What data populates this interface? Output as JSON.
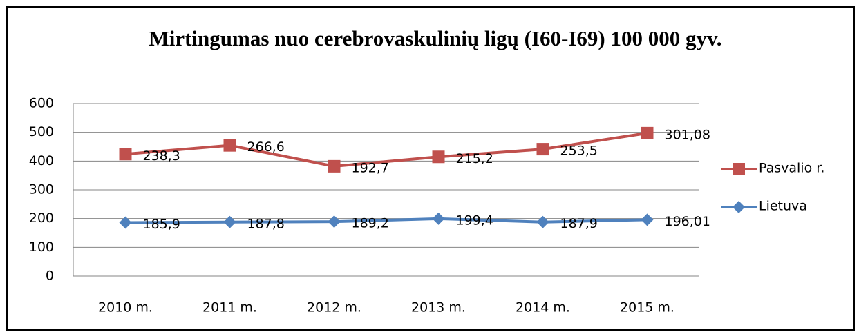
{
  "chart_data": {
    "type": "line",
    "stacked": true,
    "title": "Mirtingumas nuo cerebrovaskulinių ligų (I60-I69) 100 000 gyv.",
    "categories": [
      "2010 m.",
      "2011 m.",
      "2012 m.",
      "2013 m.",
      "2014 m.",
      "2015 m."
    ],
    "series": [
      {
        "name": "Lietuva",
        "color": "#4f81bd",
        "marker": "diamond",
        "values": [
          185.9,
          187.8,
          189.2,
          199.4,
          187.9,
          196.01
        ],
        "value_labels": [
          "185,9",
          "187,8",
          "189,2",
          "199,4",
          "187,9",
          "196,01"
        ]
      },
      {
        "name": "Pasvalio r.",
        "color": "#c0504d",
        "marker": "square",
        "values": [
          238.3,
          266.6,
          192.7,
          215.2,
          253.5,
          301.08
        ],
        "value_labels": [
          "238,3",
          "266,6",
          "192,7",
          "215,2",
          "253,5",
          "301,08"
        ]
      }
    ],
    "ylim": [
      0,
      600
    ],
    "yticks": [
      0,
      100,
      200,
      300,
      400,
      500,
      600
    ],
    "grid": true,
    "legend": "right"
  }
}
